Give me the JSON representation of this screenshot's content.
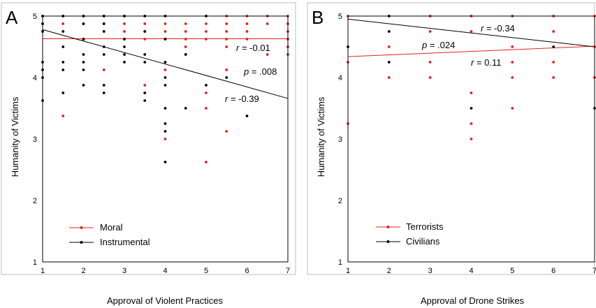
{
  "chart_data": [
    {
      "type": "scatter",
      "panel_label": "A",
      "xlabel": "Approval of Violent Practices",
      "ylabel": "Humanity of Victims",
      "xlim": [
        1,
        7
      ],
      "ylim": [
        1,
        5
      ],
      "x_ticks": [
        "1",
        "2",
        "3",
        "4",
        "5",
        "6",
        "7"
      ],
      "y_ticks": [
        "1",
        "2",
        "3",
        "4",
        "5"
      ],
      "grid": false,
      "legend_position": "bottom-left",
      "series": [
        {
          "name": "Moral",
          "color": "#e32119",
          "line": [
            [
              1,
              4.63
            ],
            [
              7,
              4.63
            ]
          ],
          "points": [
            [
              1,
              5
            ],
            [
              1,
              4.875
            ],
            [
              1.5,
              5
            ],
            [
              1.5,
              4.875
            ],
            [
              1.5,
              3.375
            ],
            [
              2,
              5
            ],
            [
              2,
              4.875
            ],
            [
              2,
              4.625
            ],
            [
              2.5,
              5
            ],
            [
              2.5,
              4.875
            ],
            [
              2.5,
              4.125
            ],
            [
              3,
              5
            ],
            [
              3,
              4.875
            ],
            [
              3,
              4.75
            ],
            [
              3,
              4.625
            ],
            [
              3.5,
              5
            ],
            [
              3.5,
              4.875
            ],
            [
              3.5,
              4.75
            ],
            [
              3.5,
              4.625
            ],
            [
              3.5,
              3.875
            ],
            [
              4,
              4.875
            ],
            [
              4,
              4.75
            ],
            [
              4,
              4.625
            ],
            [
              4,
              4.125
            ],
            [
              4,
              3
            ],
            [
              4.5,
              4.875
            ],
            [
              4.5,
              4.75
            ],
            [
              4.5,
              4.625
            ],
            [
              4.5,
              4.5
            ],
            [
              4.5,
              4.375
            ],
            [
              5,
              4.875
            ],
            [
              5,
              4.75
            ],
            [
              5,
              4.625
            ],
            [
              5,
              3.75
            ],
            [
              5,
              3.5
            ],
            [
              5,
              2.625
            ],
            [
              5.5,
              5
            ],
            [
              5.5,
              4.875
            ],
            [
              5.5,
              4.75
            ],
            [
              5.5,
              4.625
            ],
            [
              5.5,
              4.5
            ],
            [
              5.5,
              4.125
            ],
            [
              5.5,
              3.125
            ],
            [
              6,
              5
            ],
            [
              6,
              4.875
            ],
            [
              6,
              4.75
            ],
            [
              6,
              4.625
            ],
            [
              6.5,
              5
            ],
            [
              6.5,
              4.875
            ],
            [
              6.5,
              4.375
            ],
            [
              7,
              5
            ],
            [
              7,
              4.875
            ],
            [
              7,
              4.75
            ],
            [
              7,
              4.625
            ],
            [
              7,
              4.5
            ],
            [
              7,
              4.375
            ]
          ]
        },
        {
          "name": "Instrumental",
          "color": "#000000",
          "line": [
            [
              1,
              4.78
            ],
            [
              7,
              3.66
            ]
          ],
          "points": [
            [
              1,
              5
            ],
            [
              1,
              4.875
            ],
            [
              1,
              4.75
            ],
            [
              1,
              4.25
            ],
            [
              1,
              4.125
            ],
            [
              1,
              4
            ],
            [
              1,
              3.625
            ],
            [
              1.5,
              5
            ],
            [
              1.5,
              4.75
            ],
            [
              1.5,
              4.5
            ],
            [
              1.5,
              4.25
            ],
            [
              1.5,
              4.125
            ],
            [
              1.5,
              3.75
            ],
            [
              2,
              5
            ],
            [
              2,
              4.875
            ],
            [
              2,
              4.625
            ],
            [
              2,
              4.375
            ],
            [
              2,
              4.25
            ],
            [
              2,
              4.125
            ],
            [
              2,
              3.875
            ],
            [
              2.5,
              5
            ],
            [
              2.5,
              4.875
            ],
            [
              2.5,
              4.75
            ],
            [
              2.5,
              4.5
            ],
            [
              2.5,
              4.375
            ],
            [
              2.5,
              3.875
            ],
            [
              2.5,
              3.75
            ],
            [
              3,
              5
            ],
            [
              3,
              4.625
            ],
            [
              3,
              4.5
            ],
            [
              3,
              4.375
            ],
            [
              3,
              4.25
            ],
            [
              3.5,
              5
            ],
            [
              3.5,
              4.75
            ],
            [
              3.5,
              4.375
            ],
            [
              3.5,
              4.25
            ],
            [
              3.5,
              3.75
            ],
            [
              3.5,
              3.625
            ],
            [
              4,
              5
            ],
            [
              4,
              4.625
            ],
            [
              4,
              4.25
            ],
            [
              4,
              4
            ],
            [
              4,
              3.875
            ],
            [
              4,
              3.5
            ],
            [
              4,
              3.25
            ],
            [
              4,
              3.125
            ],
            [
              4,
              2.625
            ],
            [
              4.5,
              4.375
            ],
            [
              4.5,
              3.5
            ],
            [
              5,
              5
            ],
            [
              5,
              3.875
            ],
            [
              5.5,
              4
            ],
            [
              6,
              3.375
            ]
          ]
        }
      ],
      "annotations": [
        {
          "italic": "r",
          "text": " = -0.01"
        },
        {
          "italic": "p",
          "text": " = .008"
        },
        {
          "italic": "r",
          "text": " = -0.39"
        }
      ]
    },
    {
      "type": "scatter",
      "panel_label": "B",
      "xlabel": "Approval of Drone Strikes",
      "ylabel": "Humanity of Victims",
      "xlim": [
        1,
        7
      ],
      "ylim": [
        1,
        5
      ],
      "x_ticks": [
        "1",
        "2",
        "3",
        "4",
        "5",
        "6",
        "7"
      ],
      "y_ticks": [
        "1",
        "2",
        "3",
        "4",
        "5"
      ],
      "grid": false,
      "legend_position": "bottom-left",
      "series": [
        {
          "name": "Terrorists",
          "color": "#e32119",
          "line": [
            [
              1,
              4.34
            ],
            [
              7,
              4.51
            ]
          ],
          "points": [
            [
              1,
              5
            ],
            [
              1,
              4.25
            ],
            [
              1,
              3.25
            ],
            [
              2,
              4.5
            ],
            [
              2,
              4
            ],
            [
              3,
              5
            ],
            [
              3,
              4.75
            ],
            [
              3,
              4.25
            ],
            [
              3,
              4
            ],
            [
              4,
              5
            ],
            [
              4,
              4.75
            ],
            [
              4,
              3.75
            ],
            [
              4,
              3.25
            ],
            [
              4,
              3
            ],
            [
              5,
              5
            ],
            [
              5,
              4.5
            ],
            [
              5,
              4.25
            ],
            [
              5,
              4
            ],
            [
              5,
              3.5
            ],
            [
              6,
              5
            ],
            [
              6,
              4.75
            ],
            [
              6,
              4.25
            ],
            [
              6,
              4
            ],
            [
              7,
              5
            ],
            [
              7,
              4.5
            ],
            [
              7,
              4
            ]
          ]
        },
        {
          "name": "Civilians",
          "color": "#000000",
          "line": [
            [
              1,
              4.95
            ],
            [
              7,
              4.5
            ]
          ],
          "points": [
            [
              1,
              4.5
            ],
            [
              2,
              5
            ],
            [
              2,
              4.75
            ],
            [
              2,
              4.25
            ],
            [
              4,
              3.5
            ],
            [
              6,
              4.5
            ],
            [
              7,
              3.5
            ]
          ]
        }
      ],
      "annotations": [
        {
          "italic": "r",
          "text": " = -0.34"
        },
        {
          "italic": "p",
          "text": " = .024"
        },
        {
          "italic": "r",
          "text": " = 0.11"
        }
      ]
    }
  ]
}
